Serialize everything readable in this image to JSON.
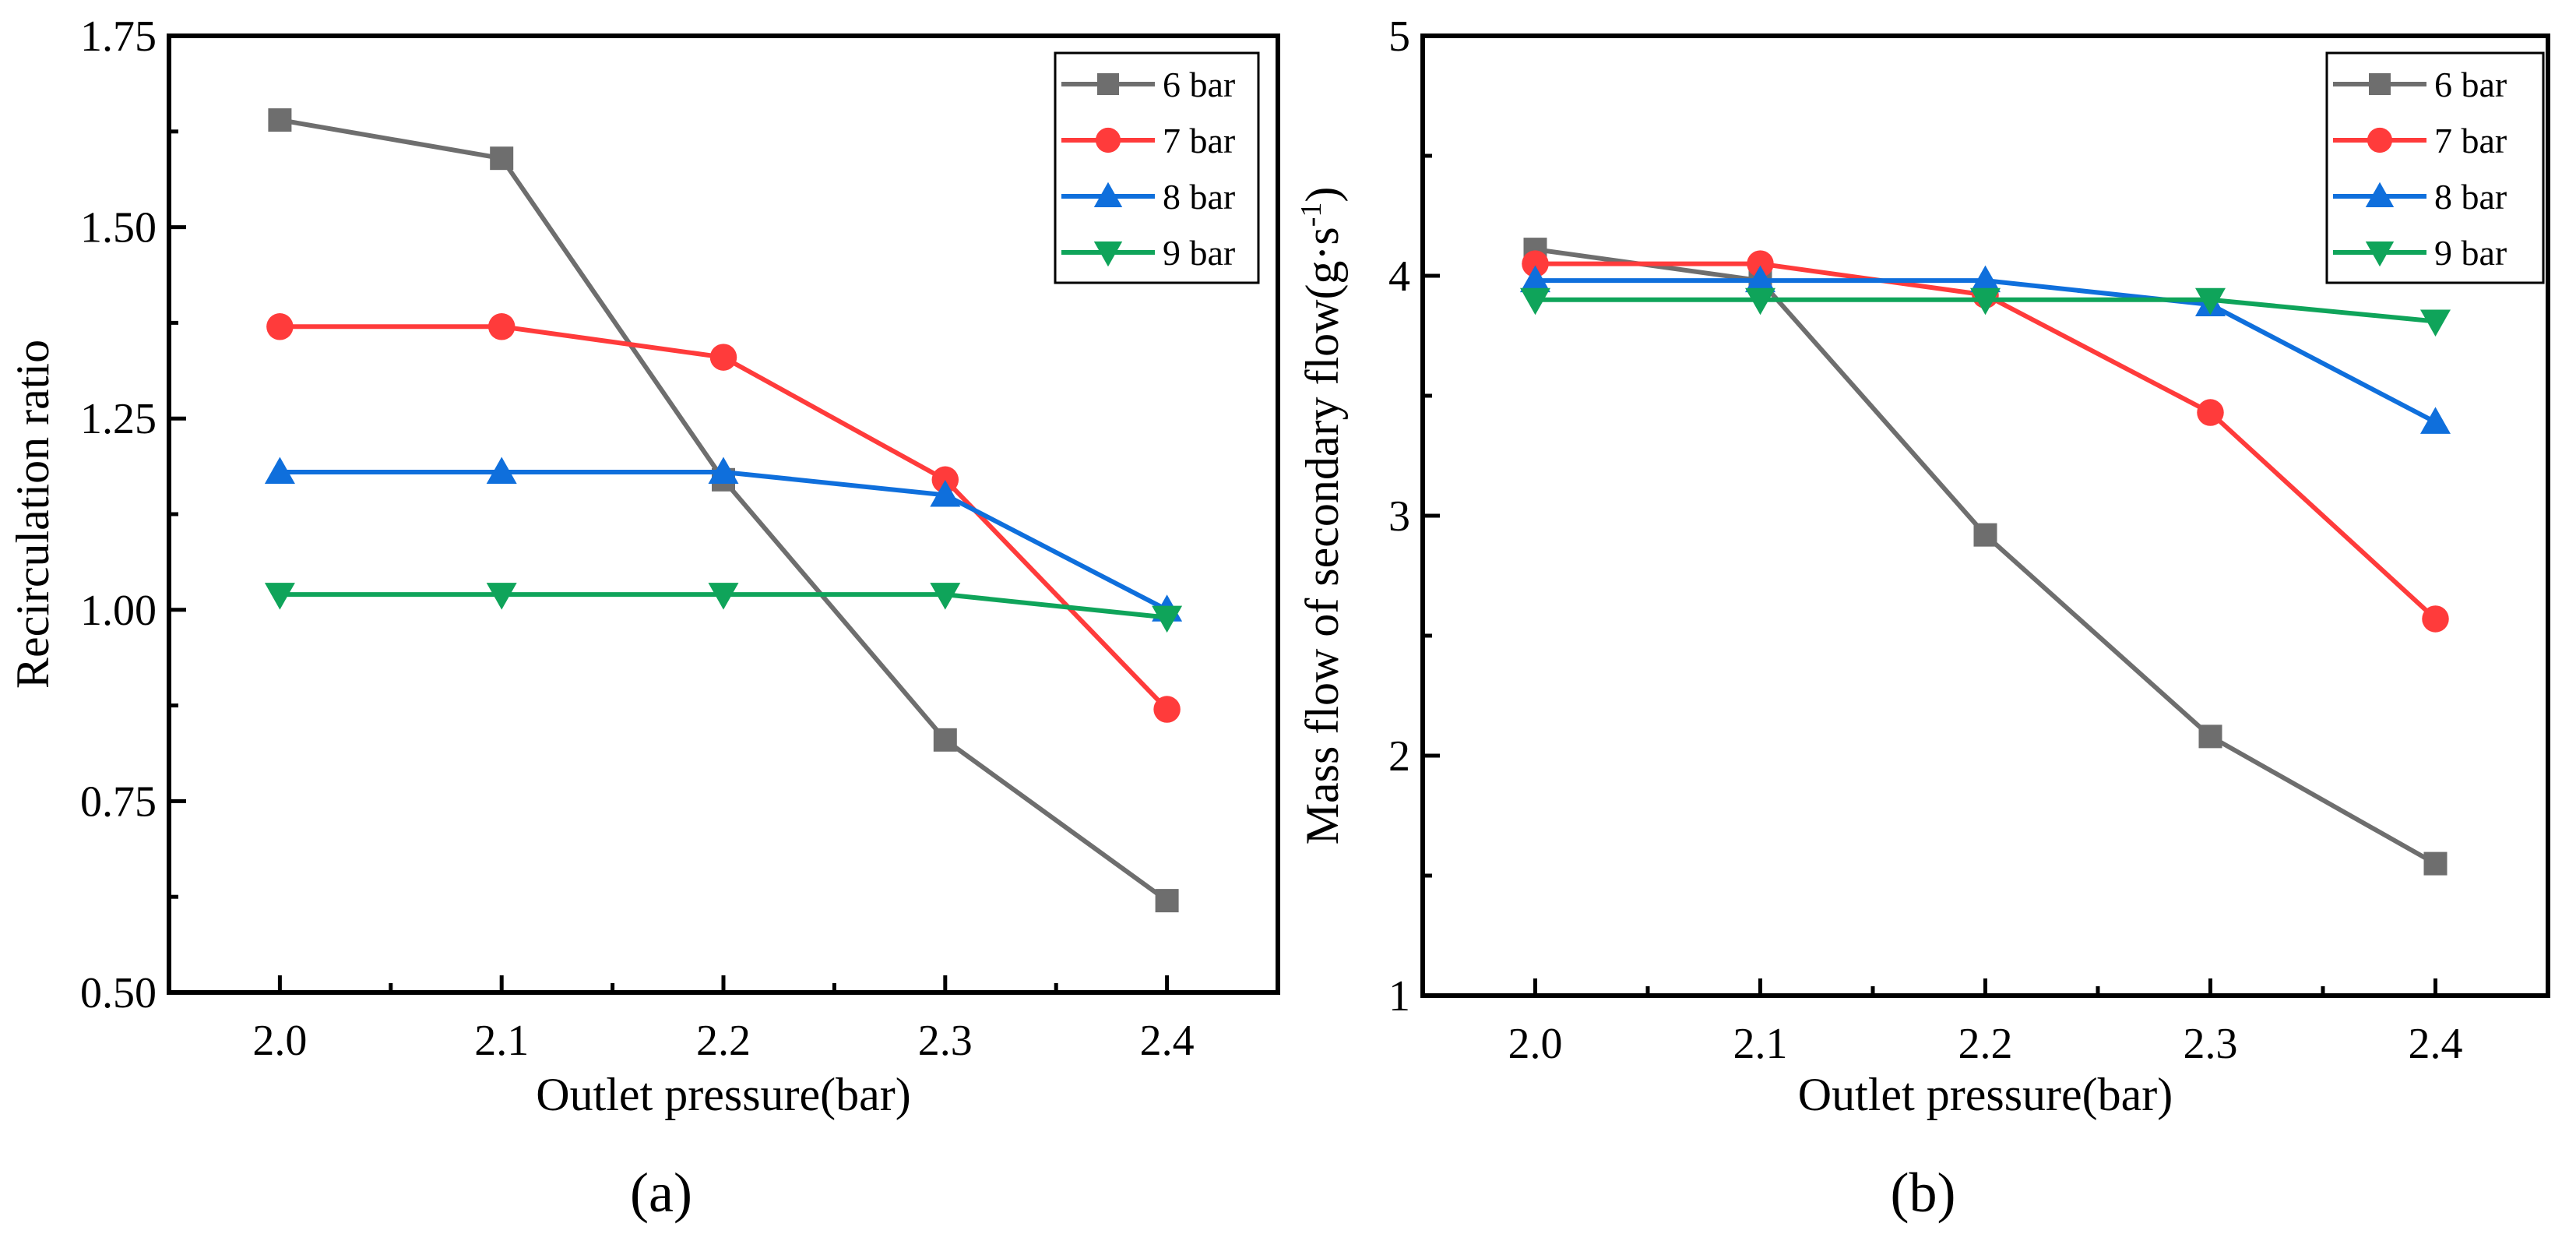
{
  "colors": {
    "6 bar": "#6e6e6e",
    "7 bar": "#ff3b3b",
    "8 bar": "#0f6fdc",
    "9 bar": "#0fa45a"
  },
  "chart_data": [
    {
      "type": "line",
      "caption": "(a)",
      "xlabel": "Outlet pressure(bar)",
      "ylabel": "Recirculation ratio",
      "x": [
        2.0,
        2.1,
        2.2,
        2.3,
        2.4
      ],
      "xticks": [
        "2.0",
        "2.1",
        "2.2",
        "2.3",
        "2.4"
      ],
      "yticks": [
        "0.50",
        "0.75",
        "1.00",
        "1.25",
        "1.50",
        "1.75"
      ],
      "xlim": [
        1.95,
        2.45
      ],
      "ylim": [
        0.5,
        1.75
      ],
      "grid": false,
      "legend_position": "top-right",
      "series": [
        {
          "name": "6 bar",
          "marker": "square",
          "values": [
            1.64,
            1.59,
            1.17,
            0.83,
            0.62
          ]
        },
        {
          "name": "7 bar",
          "marker": "circle",
          "values": [
            1.37,
            1.37,
            1.33,
            1.17,
            0.87
          ]
        },
        {
          "name": "8 bar",
          "marker": "triangle-up",
          "values": [
            1.18,
            1.18,
            1.18,
            1.15,
            1.0
          ]
        },
        {
          "name": "9 bar",
          "marker": "triangle-down",
          "values": [
            1.02,
            1.02,
            1.02,
            1.02,
            0.99
          ]
        }
      ]
    },
    {
      "type": "line",
      "caption": "(b)",
      "xlabel": "Outlet pressure(bar)",
      "ylabel": "Mass flow of secondary flow(g·s",
      "ylabel_sup": "-1",
      "ylabel_end": ")",
      "x": [
        2.0,
        2.1,
        2.2,
        2.3,
        2.4
      ],
      "xticks": [
        "2.0",
        "2.1",
        "2.2",
        "2.3",
        "2.4"
      ],
      "yticks": [
        "1",
        "2",
        "3",
        "4",
        "5"
      ],
      "xlim": [
        1.95,
        2.45
      ],
      "ylim": [
        1,
        5
      ],
      "grid": false,
      "legend_position": "top-right",
      "series": [
        {
          "name": "6 bar",
          "marker": "square",
          "values": [
            4.11,
            3.98,
            2.92,
            2.08,
            1.55
          ]
        },
        {
          "name": "7 bar",
          "marker": "circle",
          "values": [
            4.05,
            4.05,
            3.92,
            3.43,
            2.57
          ]
        },
        {
          "name": "8 bar",
          "marker": "triangle-up",
          "values": [
            3.98,
            3.98,
            3.98,
            3.88,
            3.39
          ]
        },
        {
          "name": "9 bar",
          "marker": "triangle-down",
          "values": [
            3.9,
            3.9,
            3.9,
            3.9,
            3.81
          ]
        }
      ]
    }
  ]
}
